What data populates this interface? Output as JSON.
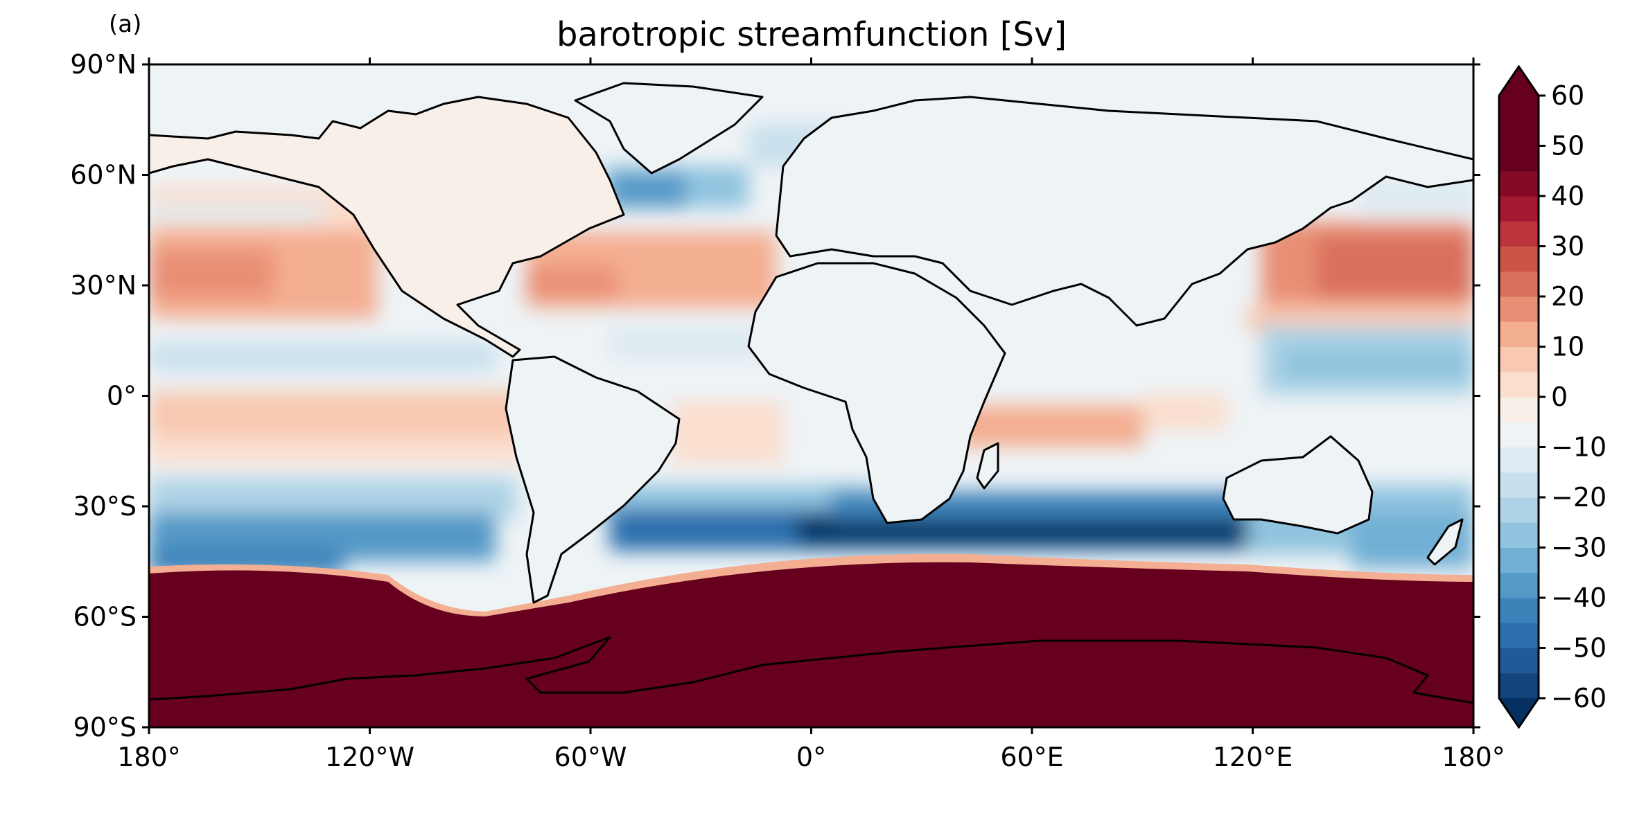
{
  "panel_label": "(a)",
  "title": "barotropic streamfunction [Sv]",
  "map": {
    "projection": "PlateCarree",
    "lon_range": [
      -180,
      180
    ],
    "lat_range": [
      -90,
      90
    ],
    "lat_ticks": [
      {
        "value": 90,
        "label": "90°N"
      },
      {
        "value": 60,
        "label": "60°N"
      },
      {
        "value": 30,
        "label": "30°N"
      },
      {
        "value": 0,
        "label": "0°"
      },
      {
        "value": -30,
        "label": "30°S"
      },
      {
        "value": -60,
        "label": "60°S"
      },
      {
        "value": -90,
        "label": "90°S"
      }
    ],
    "lon_ticks": [
      {
        "value": -180,
        "label": "180°"
      },
      {
        "value": -120,
        "label": "120°W"
      },
      {
        "value": -60,
        "label": "60°W"
      },
      {
        "value": 0,
        "label": "0°"
      },
      {
        "value": 60,
        "label": "60°E"
      },
      {
        "value": 120,
        "label": "120°E"
      },
      {
        "value": 180,
        "label": "180°"
      }
    ]
  },
  "colorbar": {
    "colormap": "RdBu_r",
    "extend": "both",
    "min": -60,
    "max": 60,
    "step": 5,
    "ticks": [
      {
        "value": 60,
        "label": "60"
      },
      {
        "value": 50,
        "label": "50"
      },
      {
        "value": 40,
        "label": "40"
      },
      {
        "value": 30,
        "label": "30"
      },
      {
        "value": 20,
        "label": "20"
      },
      {
        "value": 10,
        "label": "10"
      },
      {
        "value": 0,
        "label": "0"
      },
      {
        "value": -10,
        "label": "−10"
      },
      {
        "value": -20,
        "label": "−20"
      },
      {
        "value": -30,
        "label": "−30"
      },
      {
        "value": -40,
        "label": "−40"
      },
      {
        "value": -50,
        "label": "−50"
      },
      {
        "value": -60,
        "label": "−60"
      }
    ],
    "colors": [
      "#053061",
      "#13457c",
      "#215a96",
      "#2b6fad",
      "#3c83ba",
      "#5599c7",
      "#71afd4",
      "#91c4df",
      "#aed3e6",
      "#c8e0ed",
      "#deebf2",
      "#eef3f6",
      "#f8efe9",
      "#fbdecd",
      "#f8c8b0",
      "#f4ae91",
      "#e98f75",
      "#d9705b",
      "#cb5348",
      "#bb343a",
      "#a3192f",
      "#840a27",
      "#67001f",
      "#67001f"
    ]
  }
}
